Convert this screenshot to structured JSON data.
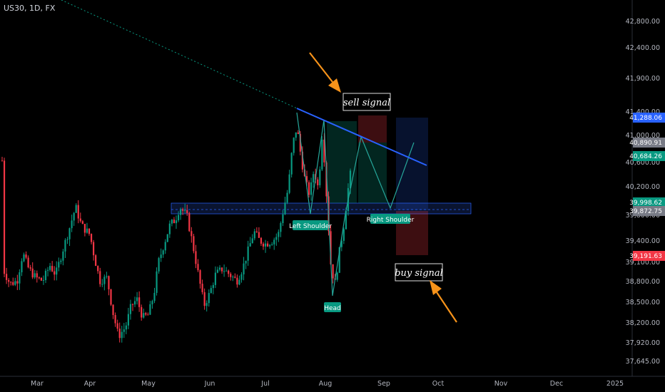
{
  "header": {
    "symbol": "US30, 1D, FX"
  },
  "chart_data": {
    "type": "candlestick",
    "symbol": "US30",
    "interval": "1D",
    "source": "FX",
    "x_labels": [
      "Mar",
      "Apr",
      "May",
      "Jun",
      "Jul",
      "Aug",
      "Sep",
      "Oct",
      "Nov",
      "Dec",
      "2025"
    ],
    "y_ticks": [
      "42,800.00",
      "42,400.00",
      "41,900.00",
      "41,400.00",
      "41,000.00",
      "40,600.00",
      "40,200.00",
      "39,800.00",
      "39,400.00",
      "39,100.00",
      "38,800.00",
      "38,500.00",
      "38,200.00",
      "37,920.00",
      "37,645.00"
    ],
    "price_tags": [
      {
        "label": "41,288.06",
        "color": "#2962ff"
      },
      {
        "label": "40,890.91",
        "color": "#787b86"
      },
      {
        "label": "40,684.26",
        "color": "#089981"
      },
      {
        "label": "39,998.62",
        "color": "#089981"
      },
      {
        "label": "39,872.75",
        "color": "#787b86"
      },
      {
        "label": "39,191.63",
        "color": "#f23645"
      }
    ],
    "pattern_labels": {
      "left_shoulder": "Left Shoulder",
      "head": "Head",
      "right_shoulder": "Right Shoulder"
    },
    "annotations": {
      "sell": "sell signal",
      "buy": "buy signal"
    },
    "colors": {
      "up": "#089981",
      "down": "#f23645",
      "trendline": "#2962ff",
      "arrow": "#f7931a"
    }
  }
}
